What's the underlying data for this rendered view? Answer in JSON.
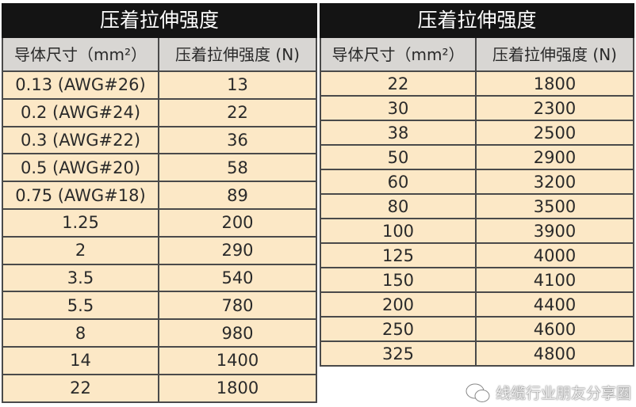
{
  "tables": [
    {
      "title": "压着拉伸强度",
      "headers": [
        "导体尺寸（mm²）",
        "压着拉伸强度 (N)"
      ],
      "rows": [
        [
          "0.13 (AWG#26)",
          "13"
        ],
        [
          "0.2 (AWG#24)",
          "22"
        ],
        [
          "0.3 (AWG#22)",
          "36"
        ],
        [
          "0.5 (AWG#20)",
          "58"
        ],
        [
          "0.75 (AWG#18)",
          "89"
        ],
        [
          "1.25",
          "200"
        ],
        [
          "2",
          "290"
        ],
        [
          "3.5",
          "540"
        ],
        [
          "5.5",
          "780"
        ],
        [
          "8",
          "980"
        ],
        [
          "14",
          "1400"
        ],
        [
          "22",
          "1800"
        ]
      ]
    },
    {
      "title": "压着拉伸强度",
      "headers": [
        "导体尺寸（mm²）",
        "压着拉伸强度 (N)"
      ],
      "rows": [
        [
          "22",
          "1800"
        ],
        [
          "30",
          "2300"
        ],
        [
          "38",
          "2500"
        ],
        [
          "50",
          "2900"
        ],
        [
          "60",
          "3200"
        ],
        [
          "80",
          "3500"
        ],
        [
          "100",
          "3900"
        ],
        [
          "125",
          "4000"
        ],
        [
          "150",
          "4100"
        ],
        [
          "200",
          "4400"
        ],
        [
          "250",
          "4600"
        ],
        [
          "325",
          "4800"
        ]
      ]
    }
  ],
  "watermark": {
    "text": "线缆行业朋友分享圈",
    "icon": "wechat-icon"
  },
  "colors": {
    "title_bg": "#141414",
    "header_bg": "#d8d6d3",
    "cell_bg": "#fce8c6"
  }
}
